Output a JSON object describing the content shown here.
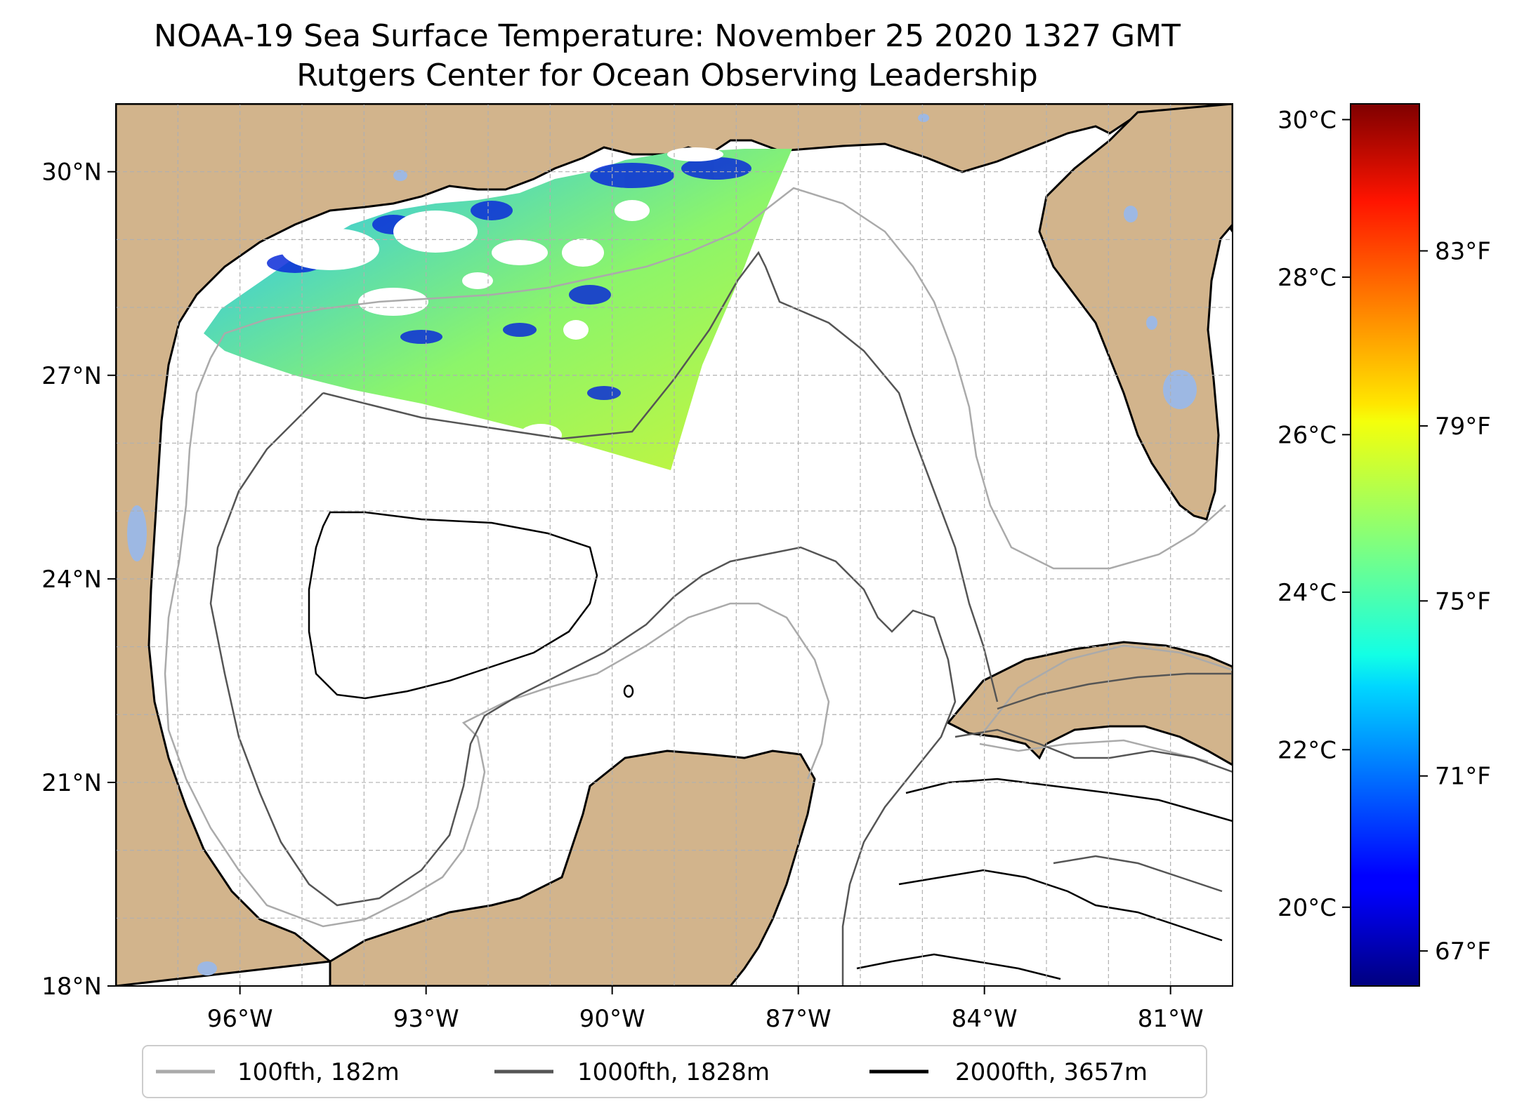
{
  "title": {
    "line1": "NOAA-19 Sea Surface Temperature: November 25 2020 1327 GMT",
    "line2": "Rutgers Center for Ocean Observing Leadership"
  },
  "map": {
    "lon_range": [
      -98,
      -80
    ],
    "lat_range": [
      18,
      31
    ],
    "lon_ticks": [
      {
        "value": -96,
        "label": "96°W"
      },
      {
        "value": -93,
        "label": "93°W"
      },
      {
        "value": -90,
        "label": "90°W"
      },
      {
        "value": -87,
        "label": "87°W"
      },
      {
        "value": -84,
        "label": "84°W"
      },
      {
        "value": -81,
        "label": "81°W"
      }
    ],
    "lat_ticks": [
      {
        "value": 30,
        "label": "30°N"
      },
      {
        "value": 27,
        "label": "27°N"
      },
      {
        "value": 24,
        "label": "24°N"
      },
      {
        "value": 21,
        "label": "21°N"
      },
      {
        "value": 18,
        "label": "18°N"
      }
    ],
    "grid": true,
    "colors": {
      "land": "#d2b48c",
      "water_bodies": "#9db8e3",
      "ocean": "#ffffff",
      "contour_100fth": "#aaaaaa",
      "contour_1000fth": "#555555",
      "contour_2000fth": "#000000"
    }
  },
  "colorbar": {
    "colormap": "jet",
    "celsius_ticks": [
      {
        "value": 30,
        "label": "30°C"
      },
      {
        "value": 28,
        "label": "28°C"
      },
      {
        "value": 26,
        "label": "26°C"
      },
      {
        "value": 24,
        "label": "24°C"
      },
      {
        "value": 22,
        "label": "22°C"
      },
      {
        "value": 20,
        "label": "20°C"
      }
    ],
    "fahrenheit_ticks": [
      {
        "value": 83,
        "label": "83°F"
      },
      {
        "value": 79,
        "label": "79°F"
      },
      {
        "value": 75,
        "label": "75°F"
      },
      {
        "value": 71,
        "label": "71°F"
      },
      {
        "value": 67,
        "label": "67°F"
      }
    ],
    "range_c": [
      19,
      30.2
    ]
  },
  "legend": {
    "placement": "bottom",
    "items": [
      {
        "label": "100fth, 182m",
        "color": "#aaaaaa"
      },
      {
        "label": "1000fth, 1828m",
        "color": "#555555"
      },
      {
        "label": "2000fth, 3657m",
        "color": "#000000"
      }
    ]
  }
}
